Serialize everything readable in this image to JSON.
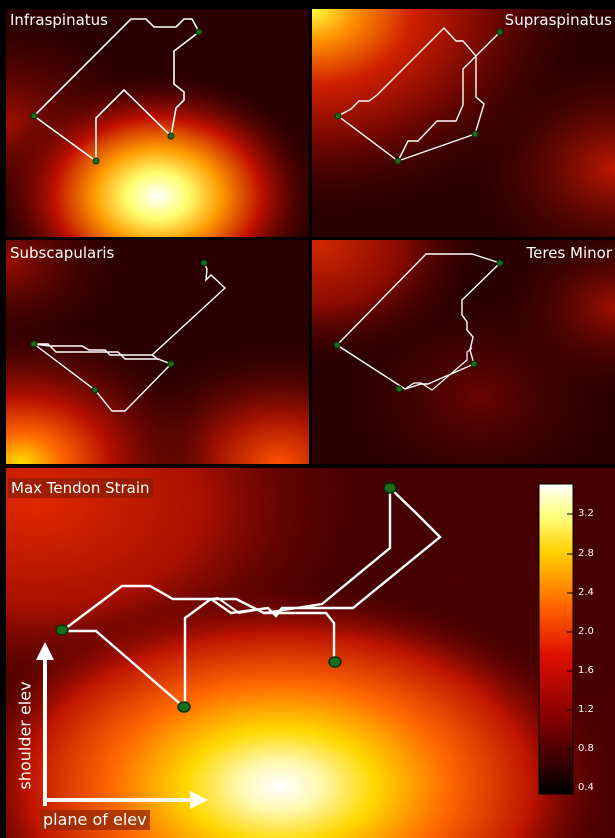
{
  "panels": [
    {
      "name": "infraspinatus",
      "title": "Infraspinatus",
      "title_align": "left"
    },
    {
      "name": "supraspinatus",
      "title": "Supraspinatus",
      "title_align": "right"
    },
    {
      "name": "subscapularis",
      "title": "Subscapularis",
      "title_align": "left"
    },
    {
      "name": "teres-minor",
      "title": "Teres Minor",
      "title_align": "right"
    },
    {
      "name": "max-tendon-strain",
      "title": "Max Tendon Strain",
      "title_align": "left"
    }
  ],
  "axes": {
    "x_label": "plane of elev",
    "y_label": "shoulder elev"
  },
  "colorbar": {
    "colormap": "hot",
    "ticks": [
      "3.2",
      "2.8",
      "2.4",
      "2.0",
      "1.6",
      "1.2",
      "0.8",
      "0.4"
    ]
  },
  "colors": {
    "path_line": "#ffffff",
    "marker_fill": "#1a6e1a",
    "marker_stroke": "#063006",
    "label_bg": "#8b1a00",
    "arrow": "#ffffff"
  },
  "chart_data": {
    "type": "heatmap",
    "title": "Max Tendon Strain",
    "xlabel": "plane of elev",
    "ylabel": "shoulder elev",
    "subplots": [
      "Infraspinatus",
      "Supraspinatus",
      "Subscapularis",
      "Teres Minor",
      "Max Tendon Strain"
    ],
    "colorbar_ticks": [
      3.2,
      2.8,
      2.4,
      2.0,
      1.6,
      1.2,
      0.8,
      0.4
    ],
    "colormap": "hot",
    "overlay": "white path with green waypoint markers"
  }
}
